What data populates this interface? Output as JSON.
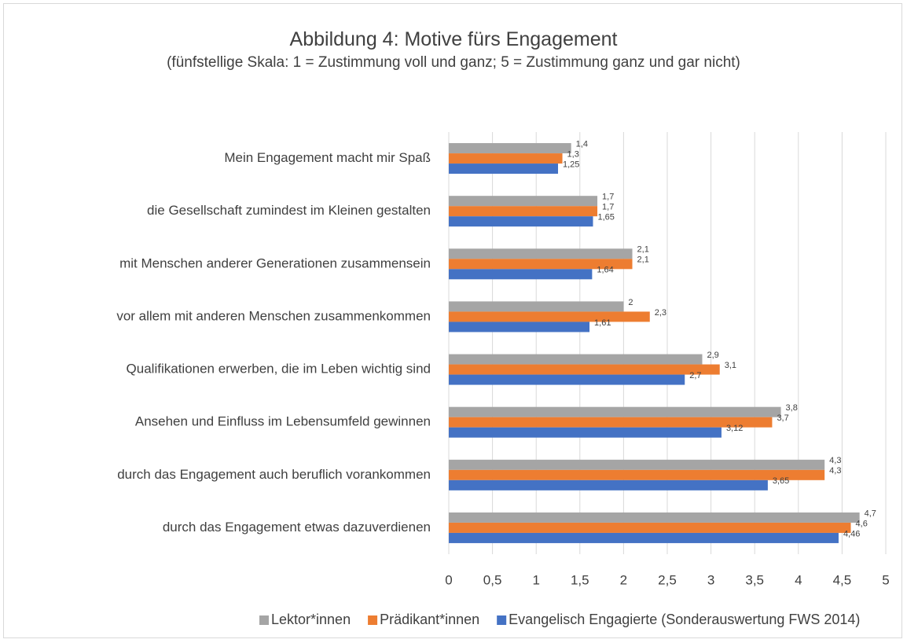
{
  "chart_data": {
    "type": "bar",
    "orientation": "horizontal",
    "title": "Abbildung 4: Motive fürs Engagement",
    "subtitle": "(fünfstellige Skala: 1 = Zustimmung voll und ganz; 5 = Zustimmung ganz und gar nicht)",
    "categories": [
      "Mein Engagement macht mir Spaß",
      "die Gesellschaft zumindest im Kleinen gestalten",
      "mit Menschen anderer Generationen zusammensein",
      "vor allem mit anderen Menschen zusammenkommen",
      "Qualifikationen erwerben, die im Leben wichtig sind",
      "Ansehen und Einfluss im Lebensumfeld gewinnen",
      "durch das Engagement auch beruflich vorankommen",
      "durch das Engagement etwas dazuverdienen"
    ],
    "series": [
      {
        "name": "Lektor*innen",
        "color": "#a5a5a5",
        "values": [
          1.4,
          1.7,
          2.1,
          2,
          2.9,
          3.8,
          4.3,
          4.7
        ],
        "value_labels": [
          "1,4",
          "1,7",
          "2,1",
          "2",
          "2,9",
          "3,8",
          "4,3",
          "4,7"
        ]
      },
      {
        "name": "Prädikant*innen",
        "color": "#ed7d31",
        "values": [
          1.3,
          1.7,
          2.1,
          2.3,
          3.1,
          3.7,
          4.3,
          4.6
        ],
        "value_labels": [
          "1,3",
          "1,7",
          "2,1",
          "2,3",
          "3,1",
          "3,7",
          "4,3",
          "4,6"
        ]
      },
      {
        "name": "Evangelisch Engagierte (Sonderauswertung FWS 2014)",
        "color": "#4472c4",
        "values": [
          1.25,
          1.65,
          1.64,
          1.61,
          2.7,
          3.12,
          3.65,
          4.46
        ],
        "value_labels": [
          "1,25",
          "1,65",
          "1,64",
          "1,61",
          "2,7",
          "3,12",
          "3,65",
          "4,46"
        ]
      }
    ],
    "xlim": [
      0,
      5
    ],
    "xticks": [
      0,
      {
        "value": 0.5,
        "label": "0,5"
      },
      1,
      {
        "value": 1.5,
        "label": "1,5"
      },
      2,
      {
        "value": 2.5,
        "label": "2,5"
      },
      3,
      {
        "value": 3.5,
        "label": "3,5"
      },
      4,
      {
        "value": 4.5,
        "label": "4,5"
      },
      5
    ],
    "grid": true,
    "legend": "bottom"
  }
}
